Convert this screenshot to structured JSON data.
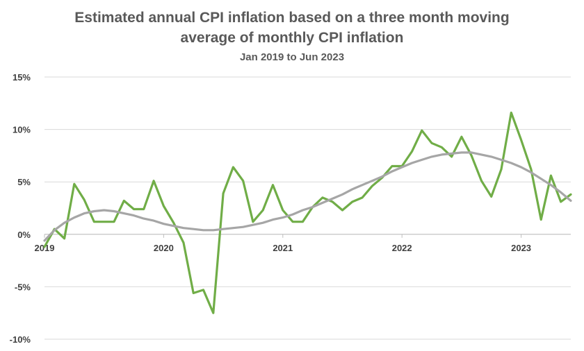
{
  "chart_data": {
    "type": "line",
    "title": "Estimated annual CPI inflation based on a three month moving average of monthly CPI inflation",
    "title_lines": [
      "Estimated annual CPI inflation based on a three month moving",
      "average of monthly CPI inflation"
    ],
    "subtitle": "Jan 2019 to Jun 2023",
    "xlabel": "",
    "ylabel": "",
    "ylim": [
      -10,
      15
    ],
    "yticks": [
      -10,
      -5,
      0,
      5,
      10,
      15
    ],
    "ytick_labels": [
      "-10%",
      "-5%",
      "0%",
      "5%",
      "10%",
      "15%"
    ],
    "x_tick_labels": [
      "2019",
      "2020",
      "2021",
      "2022",
      "2023"
    ],
    "x_tick_positions": [
      "Jan 2019",
      "Jan 2020",
      "Jan 2021",
      "Jan 2022",
      "Jan 2023"
    ],
    "grid": true,
    "legend": "none",
    "x": [
      "Jan 2019",
      "Feb 2019",
      "Mar 2019",
      "Apr 2019",
      "May 2019",
      "Jun 2019",
      "Jul 2019",
      "Aug 2019",
      "Sep 2019",
      "Oct 2019",
      "Nov 2019",
      "Dec 2019",
      "Jan 2020",
      "Feb 2020",
      "Mar 2020",
      "Apr 2020",
      "May 2020",
      "Jun 2020",
      "Jul 2020",
      "Aug 2020",
      "Sep 2020",
      "Oct 2020",
      "Nov 2020",
      "Dec 2020",
      "Jan 2021",
      "Feb 2021",
      "Mar 2021",
      "Apr 2021",
      "May 2021",
      "Jun 2021",
      "Jul 2021",
      "Aug 2021",
      "Sep 2021",
      "Oct 2021",
      "Nov 2021",
      "Dec 2021",
      "Jan 2022",
      "Feb 2022",
      "Mar 2022",
      "Apr 2022",
      "May 2022",
      "Jun 2022",
      "Jul 2022",
      "Aug 2022",
      "Sep 2022",
      "Oct 2022",
      "Nov 2022",
      "Dec 2022",
      "Jan 2023",
      "Feb 2023",
      "Mar 2023",
      "Apr 2023",
      "May 2023",
      "Jun 2023"
    ],
    "series": [
      {
        "color": "#70ad47",
        "values": [
          -1.2,
          0.5,
          -0.4,
          4.8,
          3.3,
          1.2,
          1.2,
          1.2,
          3.2,
          2.4,
          2.4,
          5.1,
          2.7,
          1.1,
          -0.8,
          -5.6,
          -5.3,
          -7.5,
          3.9,
          6.4,
          5.1,
          1.2,
          2.3,
          4.7,
          2.3,
          1.2,
          1.2,
          2.6,
          3.5,
          3.1,
          2.3,
          3.1,
          3.5,
          4.6,
          5.4,
          6.5,
          6.5,
          7.9,
          9.9,
          8.7,
          8.3,
          7.4,
          9.3,
          7.5,
          5.1,
          3.6,
          6.2,
          11.6,
          9.0,
          6.2,
          1.4,
          5.6,
          3.1,
          3.8
        ]
      },
      {
        "color": "#a6a6a6",
        "values": [
          -0.6,
          0.4,
          1.1,
          1.6,
          2.0,
          2.2,
          2.3,
          2.2,
          2.0,
          1.8,
          1.5,
          1.3,
          1.0,
          0.8,
          0.6,
          0.5,
          0.4,
          0.4,
          0.5,
          0.6,
          0.7,
          0.9,
          1.1,
          1.4,
          1.6,
          1.9,
          2.3,
          2.6,
          3.0,
          3.4,
          3.8,
          4.3,
          4.7,
          5.1,
          5.5,
          6.0,
          6.4,
          6.8,
          7.1,
          7.4,
          7.6,
          7.7,
          7.8,
          7.8,
          7.6,
          7.4,
          7.1,
          6.8,
          6.4,
          5.9,
          5.3,
          4.7,
          4.0,
          3.2
        ]
      }
    ]
  }
}
